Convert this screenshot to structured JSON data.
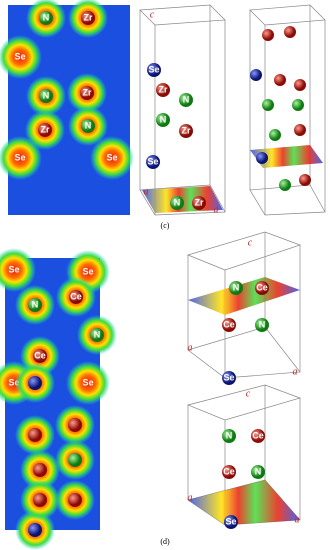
{
  "figure_c": {
    "caption": "(c)",
    "map_labels": [
      "N",
      "Zr",
      "Se",
      "N",
      "Zr",
      "Zr",
      "N",
      "Se",
      "Se"
    ],
    "box_labels": [
      "c",
      "Se",
      "Zr",
      "N",
      "N",
      "Zr",
      "Se",
      "N",
      "Zr",
      "a",
      "a"
    ]
  },
  "figure_d": {
    "caption": "(d)",
    "map_labels": [
      "Se",
      "Se",
      "N",
      "Ce",
      "N",
      "Ce",
      "Se",
      "Se"
    ],
    "upper_box_labels": [
      "c",
      "N",
      "Ce",
      "Ce",
      "N",
      "a",
      "Se",
      "a"
    ],
    "lower_box_labels": [
      "c",
      "N",
      "Ce",
      "Ce",
      "N",
      "a",
      "Se",
      "a"
    ]
  }
}
